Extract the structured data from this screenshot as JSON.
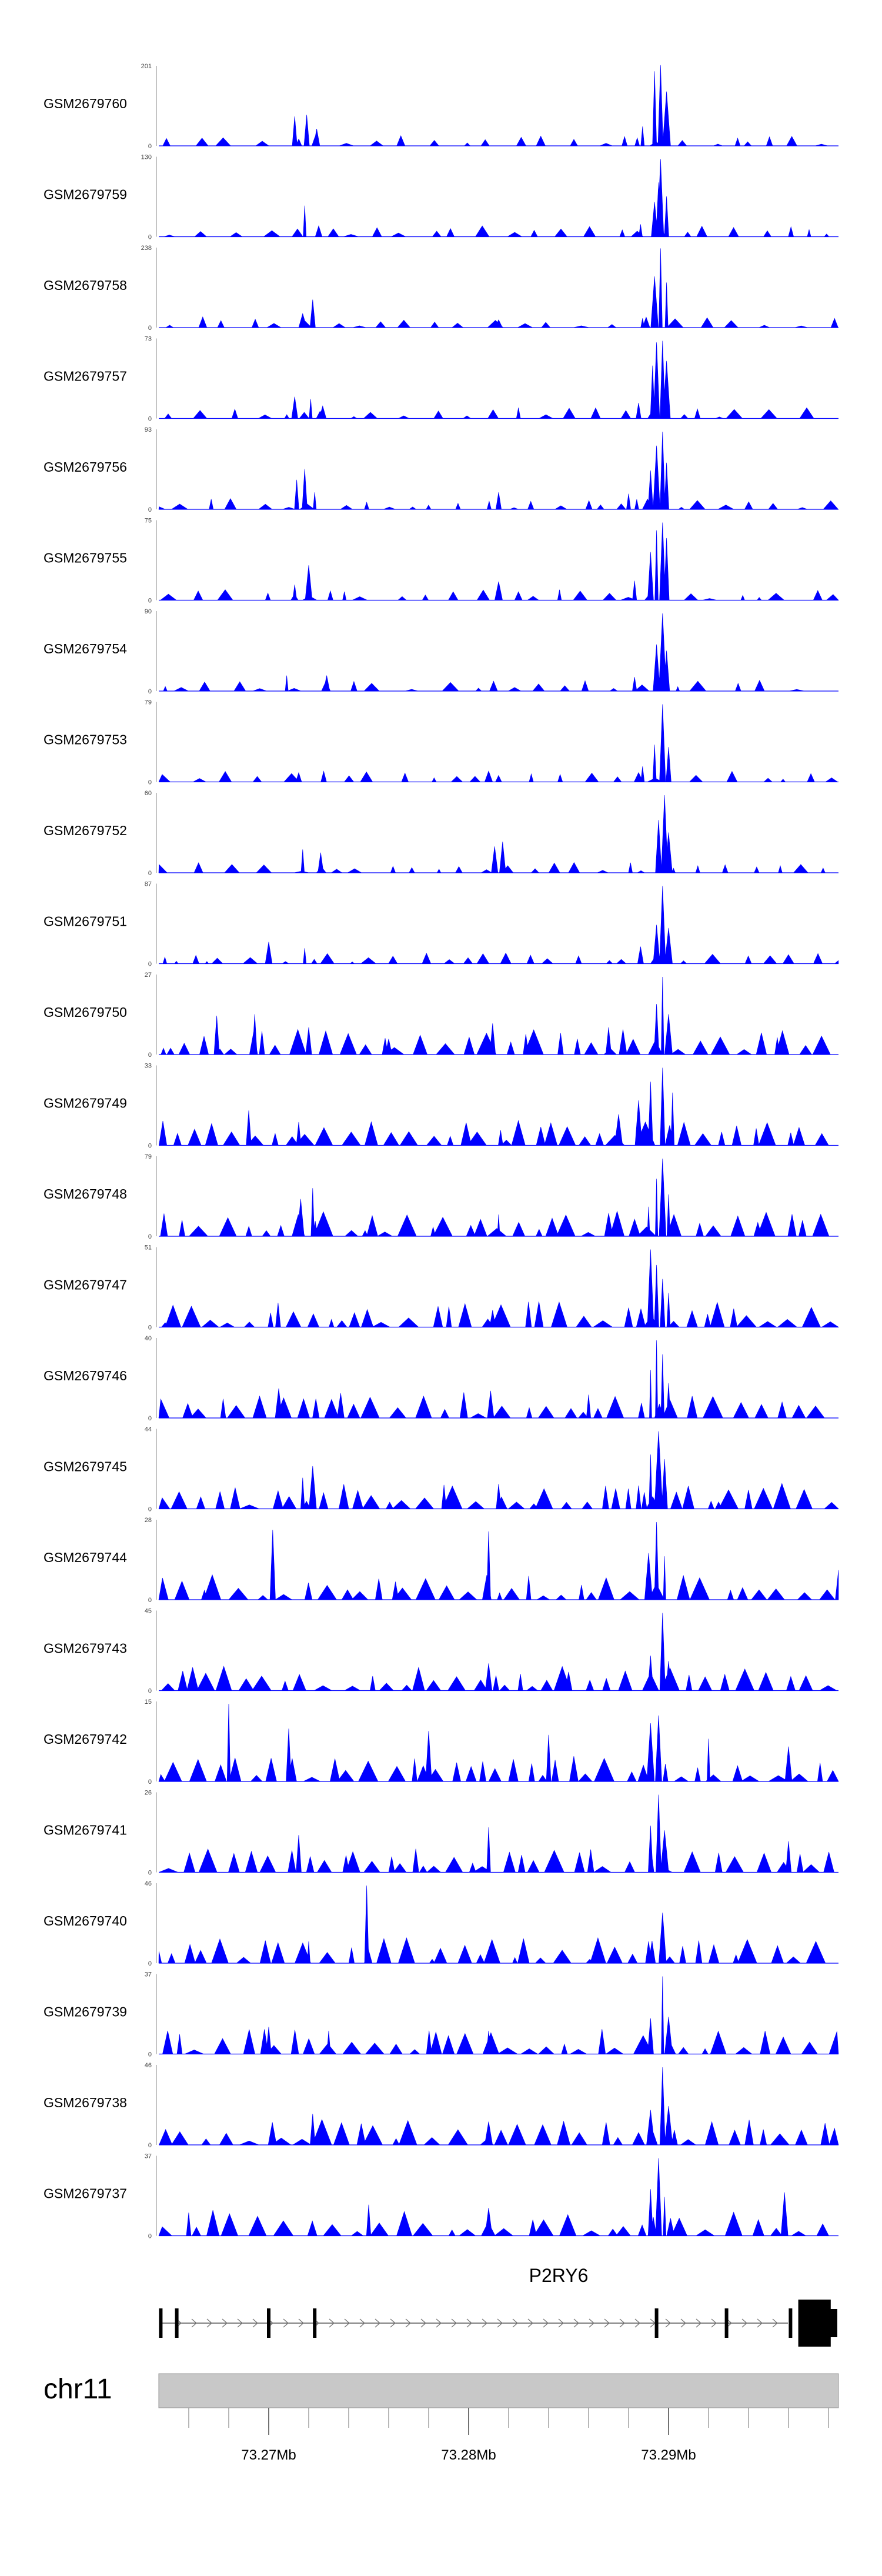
{
  "chart_data": {
    "type": "area",
    "title": "",
    "xlabel": "",
    "ylabel": "",
    "region": {
      "chromosome": "chr11",
      "start_mb": 73.2645,
      "end_mb": 73.2985
    },
    "colors": {
      "signal": "#0000ff",
      "gene": "#000000",
      "ideogram": "#c8c8c8",
      "axis": "#888888"
    },
    "gene": {
      "name": "P2RY6",
      "strand": "+",
      "exon_positions_mb": [
        73.2646,
        73.2654,
        73.27,
        73.2723,
        73.2894,
        73.2929,
        73.2961,
        73.2969,
        73.2977
      ]
    },
    "x_axis": {
      "ticks": [
        {
          "value": 73.27,
          "label": "73.27Mb"
        },
        {
          "value": 73.28,
          "label": "73.28Mb"
        },
        {
          "value": 73.29,
          "label": "73.29Mb"
        }
      ],
      "minor_step_mb": 0.002
    },
    "series": [
      {
        "name": "GSM2679760",
        "ymax_label": "201",
        "ymin_label": "0",
        "ymax": 201,
        "peaks": [
          [
            73.2713,
            38
          ],
          [
            73.2719,
            40
          ],
          [
            73.2724,
            22
          ],
          [
            73.2893,
            96
          ],
          [
            73.2896,
            104
          ],
          [
            73.2899,
            70
          ],
          [
            73.2887,
            25
          ],
          [
            73.2878,
            12
          ]
        ]
      },
      {
        "name": "GSM2679759",
        "ymax_label": "130",
        "ymin_label": "0",
        "ymax": 130,
        "peaks": [
          [
            73.2718,
            40
          ],
          [
            73.2725,
            14
          ],
          [
            73.2893,
            45
          ],
          [
            73.2896,
            100
          ],
          [
            73.2899,
            52
          ],
          [
            73.2886,
            16
          ],
          [
            73.2895,
            70
          ]
        ]
      },
      {
        "name": "GSM2679758",
        "ymax_label": "238",
        "ymin_label": "0",
        "ymax": 238,
        "peaks": [
          [
            73.2717,
            18
          ],
          [
            73.2722,
            36
          ],
          [
            73.2893,
            66
          ],
          [
            73.2896,
            102
          ],
          [
            73.2899,
            58
          ],
          [
            73.2887,
            12
          ],
          [
            73.2815,
            10
          ]
        ]
      },
      {
        "name": "GSM2679757",
        "ymax_label": "73",
        "ymin_label": "0",
        "ymax": 73,
        "peaks": [
          [
            73.2713,
            28
          ],
          [
            73.2721,
            25
          ],
          [
            73.2727,
            16
          ],
          [
            73.2892,
            68
          ],
          [
            73.2894,
            98
          ],
          [
            73.2897,
            100
          ],
          [
            73.2899,
            74
          ],
          [
            73.2885,
            20
          ]
        ]
      },
      {
        "name": "GSM2679756",
        "ymax_label": "93",
        "ymin_label": "0",
        "ymax": 93,
        "peaks": [
          [
            73.2714,
            38
          ],
          [
            73.2718,
            52
          ],
          [
            73.2723,
            22
          ],
          [
            73.2815,
            22
          ],
          [
            73.288,
            20
          ],
          [
            73.2891,
            50
          ],
          [
            73.2894,
            82
          ],
          [
            73.2897,
            100
          ],
          [
            73.2899,
            60
          ]
        ]
      },
      {
        "name": "GSM2679755",
        "ymax_label": "75",
        "ymin_label": "0",
        "ymax": 75,
        "peaks": [
          [
            73.2713,
            20
          ],
          [
            73.272,
            45
          ],
          [
            73.2815,
            24
          ],
          [
            73.2883,
            25
          ],
          [
            73.2891,
            62
          ],
          [
            73.2894,
            90
          ],
          [
            73.2897,
            100
          ],
          [
            73.2899,
            80
          ]
        ]
      },
      {
        "name": "GSM2679754",
        "ymax_label": "90",
        "ymin_label": "0",
        "ymax": 90,
        "peaks": [
          [
            73.2709,
            20
          ],
          [
            73.2729,
            20
          ],
          [
            73.2894,
            60
          ],
          [
            73.2897,
            100
          ],
          [
            73.2899,
            52
          ],
          [
            73.2883,
            18
          ]
        ]
      },
      {
        "name": "GSM2679753",
        "ymax_label": "79",
        "ymin_label": "0",
        "ymax": 79,
        "peaks": [
          [
            73.2715,
            12
          ],
          [
            73.281,
            14
          ],
          [
            73.2893,
            48
          ],
          [
            73.2897,
            100
          ],
          [
            73.29,
            45
          ],
          [
            73.2887,
            20
          ]
        ]
      },
      {
        "name": "GSM2679752",
        "ymax_label": "60",
        "ymin_label": "0",
        "ymax": 60,
        "peaks": [
          [
            73.2717,
            30
          ],
          [
            73.2726,
            26
          ],
          [
            73.2813,
            34
          ],
          [
            73.2817,
            40
          ],
          [
            73.2895,
            68
          ],
          [
            73.2898,
            100
          ],
          [
            73.29,
            52
          ]
        ]
      },
      {
        "name": "GSM2679751",
        "ymax_label": "87",
        "ymin_label": "0",
        "ymax": 87,
        "peaks": [
          [
            73.27,
            28
          ],
          [
            73.2718,
            20
          ],
          [
            73.2894,
            50
          ],
          [
            73.2897,
            100
          ],
          [
            73.29,
            46
          ],
          [
            73.2886,
            22
          ]
        ]
      },
      {
        "name": "GSM2679750",
        "ymax_label": "27",
        "ymin_label": "0",
        "ymax": 27,
        "peaks": [
          [
            73.2674,
            50
          ],
          [
            73.2693,
            52
          ],
          [
            73.272,
            35
          ],
          [
            73.276,
            20
          ],
          [
            73.2812,
            40
          ],
          [
            73.287,
            35
          ],
          [
            73.2894,
            65
          ],
          [
            73.2897,
            100
          ],
          [
            73.29,
            52
          ]
        ]
      },
      {
        "name": "GSM2679749",
        "ymax_label": "33",
        "ymin_label": "0",
        "ymax": 33,
        "peaks": [
          [
            73.269,
            45
          ],
          [
            73.2715,
            30
          ],
          [
            73.2875,
            40
          ],
          [
            73.2885,
            58
          ],
          [
            73.2891,
            82
          ],
          [
            73.2897,
            100
          ],
          [
            73.2902,
            68
          ]
        ]
      },
      {
        "name": "GSM2679748",
        "ymax_label": "79",
        "ymin_label": "0",
        "ymax": 79,
        "peaks": [
          [
            73.2716,
            48
          ],
          [
            73.2722,
            62
          ],
          [
            73.2815,
            28
          ],
          [
            73.289,
            38
          ],
          [
            73.2894,
            74
          ],
          [
            73.2897,
            100
          ],
          [
            73.29,
            54
          ]
        ]
      },
      {
        "name": "GSM2679747",
        "ymax_label": "51",
        "ymin_label": "0",
        "ymax": 51,
        "peaks": [
          [
            73.2812,
            22
          ],
          [
            73.2891,
            100
          ],
          [
            73.2894,
            80
          ],
          [
            73.2897,
            62
          ],
          [
            73.29,
            44
          ],
          [
            73.288,
            25
          ]
        ]
      },
      {
        "name": "GSM2679746",
        "ymax_label": "40",
        "ymin_label": "0",
        "ymax": 40,
        "peaks": [
          [
            73.2705,
            38
          ],
          [
            73.2736,
            32
          ],
          [
            73.2811,
            35
          ],
          [
            73.286,
            30
          ],
          [
            73.2891,
            62
          ],
          [
            73.2894,
            100
          ],
          [
            73.2897,
            82
          ],
          [
            73.29,
            45
          ]
        ]
      },
      {
        "name": "GSM2679745",
        "ymax_label": "44",
        "ymin_label": "0",
        "ymax": 44,
        "peaks": [
          [
            73.2717,
            40
          ],
          [
            73.2722,
            55
          ],
          [
            73.2815,
            32
          ],
          [
            73.2891,
            70
          ],
          [
            73.2895,
            100
          ],
          [
            73.2898,
            64
          ],
          [
            73.2885,
            30
          ]
        ]
      },
      {
        "name": "GSM2679744",
        "ymax_label": "28",
        "ymin_label": "0",
        "ymax": 28,
        "peaks": [
          [
            73.2702,
            90
          ],
          [
            73.281,
            88
          ],
          [
            73.289,
            60
          ],
          [
            73.2894,
            100
          ],
          [
            73.2898,
            56
          ],
          [
            73.2985,
            38
          ]
        ]
      },
      {
        "name": "GSM2679743",
        "ymax_label": "45",
        "ymin_label": "0",
        "ymax": 45,
        "peaks": [
          [
            73.281,
            35
          ],
          [
            73.285,
            24
          ],
          [
            73.2891,
            45
          ],
          [
            73.2897,
            100
          ],
          [
            73.29,
            38
          ]
        ]
      },
      {
        "name": "GSM2679742",
        "ymax_label": "15",
        "ymin_label": "0",
        "ymax": 15,
        "peaks": [
          [
            73.268,
            100
          ],
          [
            73.271,
            68
          ],
          [
            73.278,
            65
          ],
          [
            73.284,
            60
          ],
          [
            73.2891,
            75
          ],
          [
            73.2895,
            85
          ],
          [
            73.292,
            55
          ],
          [
            73.296,
            45
          ]
        ]
      },
      {
        "name": "GSM2679741",
        "ymax_label": "26",
        "ymin_label": "0",
        "ymax": 26,
        "peaks": [
          [
            73.2715,
            48
          ],
          [
            73.281,
            58
          ],
          [
            73.2891,
            60
          ],
          [
            73.2895,
            100
          ],
          [
            73.2898,
            54
          ],
          [
            73.296,
            40
          ]
        ]
      },
      {
        "name": "GSM2679740",
        "ymax_label": "46",
        "ymin_label": "0",
        "ymax": 46,
        "peaks": [
          [
            73.2749,
            100
          ],
          [
            73.272,
            28
          ],
          [
            73.2897,
            65
          ],
          [
            73.289,
            28
          ],
          [
            73.294,
            22
          ]
        ]
      },
      {
        "name": "GSM2679739",
        "ymax_label": "37",
        "ymin_label": "0",
        "ymax": 37,
        "peaks": [
          [
            73.27,
            35
          ],
          [
            73.273,
            30
          ],
          [
            73.281,
            30
          ],
          [
            73.2891,
            46
          ],
          [
            73.2897,
            100
          ],
          [
            73.29,
            48
          ]
        ]
      },
      {
        "name": "GSM2679738",
        "ymax_label": "46",
        "ymin_label": "0",
        "ymax": 46,
        "peaks": [
          [
            73.2722,
            40
          ],
          [
            73.281,
            30
          ],
          [
            73.2891,
            45
          ],
          [
            73.2897,
            100
          ],
          [
            73.29,
            50
          ]
        ]
      },
      {
        "name": "GSM2679737",
        "ymax_label": "37",
        "ymin_label": "0",
        "ymax": 37,
        "peaks": [
          [
            73.275,
            40
          ],
          [
            73.281,
            36
          ],
          [
            73.2891,
            60
          ],
          [
            73.2895,
            100
          ],
          [
            73.2898,
            50
          ],
          [
            73.2958,
            56
          ]
        ]
      }
    ]
  }
}
